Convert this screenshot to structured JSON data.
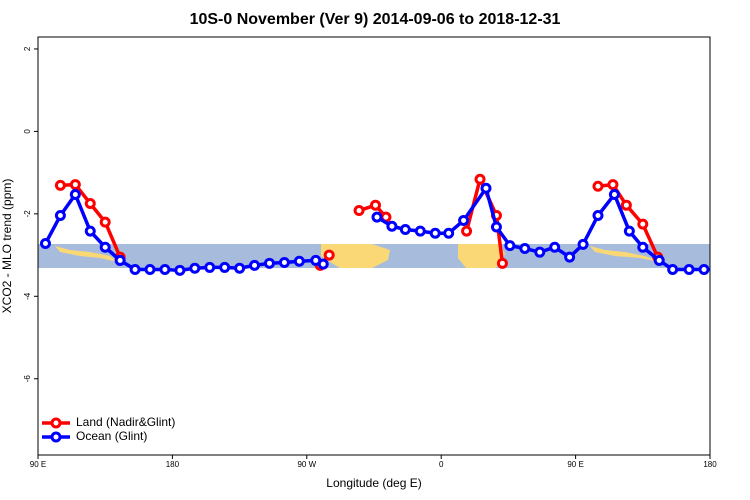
{
  "chart_data": {
    "type": "line",
    "title": "10S-0 November (Ver 9)   2014-09-06 to 2018-12-31",
    "x_label": "Longitude (deg E)",
    "y_label": "XCO2 - MLO trend (ppm)",
    "xlim": [
      90,
      540
    ],
    "ylim": [
      -7.85,
      2.29
    ],
    "xticks": [
      {
        "value": 90,
        "label": "90 E"
      },
      180,
      {
        "value": 270,
        "label": "90 W"
      },
      {
        "value": 360,
        "label": "0"
      },
      {
        "value": 450,
        "label": "90 E"
      },
      {
        "value": 540,
        "label": "180"
      }
    ],
    "yticks": [
      2,
      0,
      -2,
      -4,
      -6
    ],
    "legend": "bottom-left",
    "series": [
      {
        "name": "Land (Nadir&Glint)",
        "color": "#ff0000",
        "x": [
          105,
          115,
          125,
          135,
          145,
          155,
          279,
          285,
          295,
          305,
          316,
          323,
          335,
          377,
          386,
          397,
          401,
          455,
          465,
          475,
          484,
          495,
          505
        ],
        "values": [
          -1.31,
          -1.29,
          -1.75,
          -2.2,
          -3.05,
          null,
          -3.25,
          -3.0,
          null,
          -1.92,
          -1.79,
          -2.08,
          null,
          -2.42,
          -1.16,
          -2.04,
          -3.2,
          null,
          -1.33,
          -1.29,
          -1.79,
          -2.25,
          -3.05
        ]
      },
      {
        "name": "Ocean (Glint)",
        "color": "#0000ff",
        "x": [
          95,
          105,
          115,
          125,
          135,
          145,
          155,
          165,
          175,
          185,
          195,
          205,
          215,
          225,
          235,
          245,
          255,
          265,
          276,
          281,
          295,
          317,
          327,
          336,
          346,
          356,
          365,
          375,
          390,
          397,
          406,
          416,
          426,
          436,
          446,
          455,
          465,
          476,
          486,
          495,
          506,
          515,
          526,
          536
        ],
        "values": [
          -2.72,
          -2.04,
          -1.53,
          -2.42,
          -2.81,
          -3.13,
          -3.35,
          -3.35,
          -3.35,
          -3.37,
          -3.32,
          -3.3,
          -3.3,
          -3.32,
          -3.25,
          -3.2,
          -3.18,
          -3.15,
          -3.13,
          -3.22,
          null,
          -2.08,
          -2.3,
          -2.38,
          -2.42,
          -2.47,
          -2.47,
          -2.16,
          -1.38,
          -2.32,
          -2.77,
          -2.84,
          -2.93,
          -2.81,
          -3.05,
          -2.74,
          -2.04,
          -1.53,
          -2.42,
          -2.81,
          -3.13,
          -3.35,
          -3.35,
          -3.35
        ]
      }
    ]
  }
}
